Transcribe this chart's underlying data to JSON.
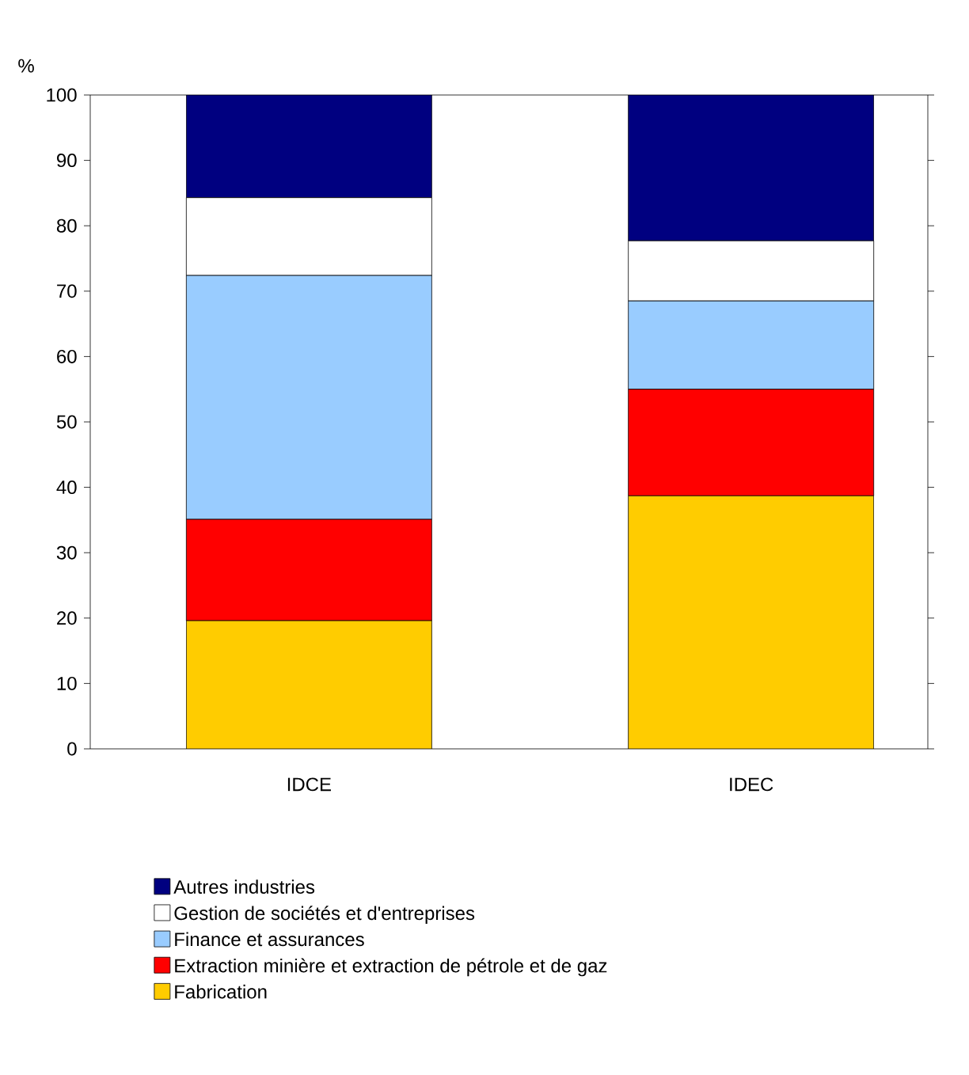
{
  "chart_data": {
    "type": "bar",
    "stacked": true,
    "ylabel": "%",
    "categories": [
      "IDCE",
      "IDEC"
    ],
    "series": [
      {
        "name": "Fabrication",
        "color": "#ffcc00",
        "values": [
          19.6,
          38.7
        ]
      },
      {
        "name": "Extraction minière et extraction de pétrole et de gaz",
        "color": "#ff0000",
        "values": [
          15.5,
          16.3
        ]
      },
      {
        "name": "Finance et assurances",
        "color": "#99ccff",
        "values": [
          37.3,
          13.5
        ]
      },
      {
        "name": "Gestion de sociétés et d'entreprises",
        "color": "#ffffff",
        "values": [
          11.9,
          9.2
        ]
      },
      {
        "name": "Autres industries",
        "color": "#000080",
        "values": [
          15.7,
          22.3
        ]
      }
    ],
    "ylim": [
      0,
      100
    ],
    "yticks": [
      0,
      10,
      20,
      30,
      40,
      50,
      60,
      70,
      80,
      90,
      100
    ],
    "legend": "bottom",
    "grid": false
  }
}
